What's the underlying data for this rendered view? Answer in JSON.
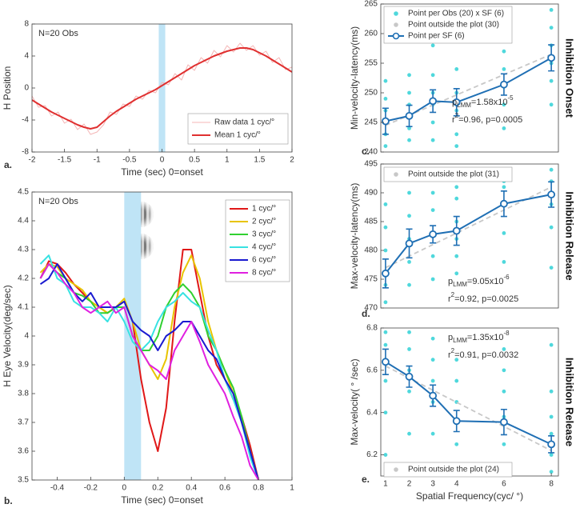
{
  "chart_data": [
    {
      "type": "line",
      "panel_label": "a.",
      "note": "N=20 Obs",
      "x_label": "Time (sec)   0=onset",
      "y_label": "H Position",
      "xlim": [
        -2,
        2
      ],
      "xticks": [
        -2,
        -1.5,
        -1,
        -0.5,
        0,
        0.5,
        1,
        1.5,
        2
      ],
      "ylim": [
        -8,
        8
      ],
      "yticks": [
        -8,
        -4,
        0,
        4,
        8
      ],
      "span": [
        -0.05,
        0.05
      ],
      "span_color": "#bfe4f6",
      "x": [
        -2,
        -1.9,
        -1.8,
        -1.7,
        -1.6,
        -1.5,
        -1.4,
        -1.3,
        -1.2,
        -1.1,
        -1,
        -0.9,
        -0.8,
        -0.7,
        -0.6,
        -0.5,
        -0.4,
        -0.3,
        -0.2,
        -0.1,
        0,
        0.1,
        0.2,
        0.3,
        0.4,
        0.5,
        0.6,
        0.7,
        0.8,
        0.9,
        1,
        1.1,
        1.2,
        1.3,
        1.4,
        1.5,
        1.6,
        1.7,
        1.8,
        1.9,
        2
      ],
      "series": [
        {
          "name": "Raw data 1 cyc/°",
          "color": "#f4b6b6",
          "width": 1,
          "values": [
            -1.0,
            -2.4,
            -2.2,
            -3.5,
            -3.0,
            -4.4,
            -3.9,
            -5.2,
            -4.5,
            -5.8,
            -5.5,
            -4.6,
            -3.0,
            -3.3,
            -2.0,
            -2.3,
            -1.0,
            -1.4,
            -0.3,
            -0.6,
            0.7,
            0.4,
            1.8,
            1.0,
            2.9,
            2.2,
            3.8,
            3.1,
            4.7,
            3.9,
            5.3,
            4.5,
            5.6,
            4.7,
            5.3,
            4.1,
            4.6,
            3.2,
            3.8,
            2.3,
            2.6
          ]
        },
        {
          "name": "Mean 1 cyc/°",
          "color": "#e03030",
          "width": 2,
          "values": [
            -1.5,
            -2.0,
            -2.5,
            -3.0,
            -3.4,
            -3.8,
            -4.2,
            -4.6,
            -4.9,
            -5.1,
            -4.9,
            -4.2,
            -3.5,
            -2.9,
            -2.4,
            -1.9,
            -1.4,
            -1.0,
            -0.6,
            -0.2,
            0.3,
            0.8,
            1.3,
            1.8,
            2.3,
            2.8,
            3.2,
            3.6,
            4.0,
            4.3,
            4.6,
            4.8,
            5.0,
            5.0,
            4.8,
            4.4,
            4.0,
            3.5,
            3.0,
            2.5,
            2.0
          ]
        }
      ]
    },
    {
      "type": "line",
      "panel_label": "b.",
      "note": "N=20 Obs",
      "x_label": "Time (sec)   0=onset",
      "y_label": "H Eye Velocity(deg/sec)",
      "xlim": [
        -0.55,
        1
      ],
      "xticks": [
        -0.4,
        -0.2,
        0,
        0.2,
        0.4,
        0.6,
        0.8,
        1
      ],
      "ylim": [
        3.5,
        4.5
      ],
      "yticks": [
        3.5,
        3.6,
        3.7,
        3.8,
        3.9,
        4,
        4.1,
        4.2,
        4.3,
        4.4,
        4.5
      ],
      "span": [
        0,
        0.1
      ],
      "span_color": "#bfe4f6",
      "x": [
        -0.5,
        -0.45,
        -0.4,
        -0.35,
        -0.3,
        -0.25,
        -0.2,
        -0.15,
        -0.1,
        -0.05,
        0,
        0.05,
        0.1,
        0.15,
        0.2,
        0.25,
        0.3,
        0.35,
        0.4,
        0.45,
        0.5,
        0.55,
        0.6,
        0.65,
        0.7,
        0.75,
        0.8
      ],
      "series": [
        {
          "name": "1 cyc/°",
          "color": "#e01818",
          "width": 2,
          "values": [
            4.2,
            4.26,
            4.25,
            4.22,
            4.18,
            4.15,
            4.12,
            4.1,
            4.08,
            4.1,
            4.12,
            4.05,
            3.85,
            3.7,
            3.6,
            3.75,
            4.05,
            4.3,
            4.3,
            4.15,
            4.0,
            3.9,
            3.85,
            3.78,
            3.72,
            3.62,
            3.5
          ]
        },
        {
          "name": "2 cyc/°",
          "color": "#e8c400",
          "width": 2,
          "values": [
            4.22,
            4.25,
            4.24,
            4.2,
            4.18,
            4.16,
            4.12,
            4.1,
            4.08,
            4.1,
            4.13,
            4.05,
            3.95,
            3.9,
            3.85,
            3.92,
            4.1,
            4.22,
            4.28,
            4.2,
            4.05,
            3.95,
            3.88,
            3.8,
            3.7,
            3.6,
            3.5
          ]
        },
        {
          "name": "3 cyc/°",
          "color": "#30d030",
          "width": 2,
          "values": [
            4.2,
            4.25,
            4.22,
            4.2,
            4.15,
            4.14,
            4.12,
            4.08,
            4.08,
            4.1,
            4.1,
            4.0,
            3.95,
            3.95,
            4.0,
            4.1,
            4.15,
            4.18,
            4.15,
            4.1,
            4.0,
            3.95,
            3.88,
            3.82,
            3.72,
            3.6,
            3.5
          ]
        },
        {
          "name": "4 cyc/°",
          "color": "#38e2e2",
          "width": 2,
          "values": [
            4.25,
            4.28,
            4.2,
            4.18,
            4.12,
            4.1,
            4.1,
            4.08,
            4.05,
            4.1,
            4.05,
            3.98,
            3.95,
            3.98,
            4.05,
            4.1,
            4.12,
            4.15,
            4.12,
            4.1,
            4.02,
            3.95,
            3.85,
            3.78,
            3.7,
            3.58,
            3.5
          ]
        },
        {
          "name": "6 cyc/°",
          "color": "#1a1ad0",
          "width": 2,
          "values": [
            4.18,
            4.2,
            4.25,
            4.2,
            4.15,
            4.12,
            4.15,
            4.1,
            4.1,
            4.1,
            4.12,
            4.05,
            4.02,
            4.0,
            3.95,
            4.0,
            4.02,
            4.05,
            4.05,
            4.0,
            3.95,
            3.92,
            3.85,
            3.8,
            3.7,
            3.6,
            3.5
          ]
        },
        {
          "name": "8 cyc/°",
          "color": "#e020e0",
          "width": 2,
          "values": [
            4.2,
            4.25,
            4.22,
            4.18,
            4.15,
            4.1,
            4.08,
            4.1,
            4.12,
            4.08,
            4.1,
            4.0,
            3.95,
            3.9,
            3.88,
            3.85,
            3.95,
            4.0,
            4.05,
            3.98,
            3.9,
            3.85,
            3.8,
            3.72,
            3.65,
            3.55,
            3.5
          ]
        }
      ]
    },
    {
      "type": "scatter",
      "panel_label": "c.",
      "side_title": "Inhibition Onset",
      "y_label": "Min-velocity-latency(ms)",
      "xlim": [
        0.8,
        8.3
      ],
      "ylim": [
        240,
        265
      ],
      "yticks": [
        240,
        245,
        250,
        255,
        260,
        265
      ],
      "series": [
        {
          "name": "Point per Obs (20) x SF (6)",
          "color": "#4fd8dc",
          "x": [
            1,
            1,
            1,
            1,
            1,
            1,
            2,
            2,
            2,
            2,
            2,
            2,
            3,
            3,
            3,
            3,
            3,
            3,
            4,
            4,
            4,
            4,
            4,
            4,
            6,
            6,
            6,
            6,
            6,
            6,
            8,
            8,
            8,
            8,
            8,
            8
          ],
          "values": [
            241,
            243,
            245,
            247,
            249,
            252,
            242,
            244,
            246,
            248,
            250,
            253,
            242,
            245,
            248,
            250,
            253,
            258,
            241,
            243,
            247,
            250,
            254,
            259,
            244,
            248,
            251,
            254,
            257,
            262,
            248,
            252,
            255,
            258,
            261,
            264
          ]
        },
        {
          "name": "Point per SF (6)",
          "color": "#1f6fb4",
          "x": [
            1,
            2,
            3,
            4,
            6,
            8
          ],
          "values": [
            245.2,
            246.1,
            248.6,
            248.4,
            251.4,
            255.9
          ],
          "errors": [
            2.2,
            1.8,
            1.9,
            2.3,
            1.8,
            2.2
          ]
        }
      ],
      "outside": {
        "name": "Point outside the plot (30)",
        "color": "#c8c8c8"
      },
      "fit": {
        "x": [
          1,
          8
        ],
        "values": [
          244.5,
          256.5
        ],
        "color": "#c8c8c8"
      },
      "stats": {
        "p": "p",
        "p_sub": "LMM",
        "p_main": "=1.58x10",
        "p_sup": "-5",
        "r": "r",
        "r_sup": "2",
        "r_main": "=0.96, p=0.0005"
      }
    },
    {
      "type": "scatter",
      "panel_label": "d.",
      "side_title": "Inhibition Release",
      "y_label": "Max-velocity-latency(ms)",
      "xlim": [
        0.8,
        8.3
      ],
      "ylim": [
        470,
        495
      ],
      "yticks": [
        470,
        475,
        480,
        485,
        490,
        495
      ],
      "series": [
        {
          "name": "Point per Obs (20) x SF (6)",
          "color": "#4fd8dc",
          "x": [
            1,
            1,
            1,
            1,
            1,
            1,
            2,
            2,
            2,
            2,
            2,
            2,
            3,
            3,
            3,
            3,
            3,
            3,
            4,
            4,
            4,
            4,
            4,
            4,
            6,
            6,
            6,
            6,
            6,
            6,
            8,
            8,
            8,
            8,
            8,
            8
          ],
          "values": [
            471,
            474,
            476,
            480,
            484,
            488,
            474,
            478,
            482,
            486,
            490,
            493,
            475,
            479,
            483,
            487,
            490,
            494,
            476,
            479,
            482,
            485,
            489,
            491,
            478,
            483,
            488,
            491,
            494,
            492,
            477,
            484,
            488,
            492,
            494,
            490
          ]
        },
        {
          "name": "Point per SF (6)",
          "color": "#1f6fb4",
          "x": [
            1,
            2,
            3,
            4,
            6,
            8
          ],
          "values": [
            476,
            481.2,
            482.8,
            483.4,
            488.1,
            489.7
          ],
          "errors": [
            2.5,
            2.5,
            1.5,
            2.5,
            2.2,
            2.2
          ]
        }
      ],
      "outside": {
        "name": "Point outside the plot (31)",
        "color": "#c8c8c8"
      },
      "fit": {
        "x": [
          1,
          8
        ],
        "values": [
          477,
          491
        ],
        "color": "#c8c8c8"
      },
      "stats": {
        "p": "p",
        "p_sub": "LMM",
        "p_main": "=9.05x10",
        "p_sup": "-6",
        "r": "r",
        "r_sup": "2",
        "r_main": "=0.92, p=0.0025"
      }
    },
    {
      "type": "scatter",
      "panel_label": "e.",
      "side_title": "Inhibition Release",
      "y_label": "Max-velocity( ° /sec)",
      "x_label": "Spatial Frequency(cyc/ °)",
      "xlim": [
        0.8,
        8.3
      ],
      "xticks": [
        1,
        2,
        3,
        4,
        6,
        8
      ],
      "ylim": [
        6.1,
        6.8
      ],
      "yticks": [
        6.2,
        6.4,
        6.6,
        6.8
      ],
      "series": [
        {
          "name": "Point per Obs (20) x SF (6)",
          "color": "#4fd8dc",
          "x": [
            1,
            1,
            1,
            1,
            1,
            1,
            2,
            2,
            2,
            2,
            2,
            2,
            3,
            3,
            3,
            3,
            3,
            3,
            4,
            4,
            4,
            4,
            4,
            4,
            6,
            6,
            6,
            6,
            6,
            6,
            8,
            8,
            8,
            8,
            8,
            8
          ],
          "values": [
            6.2,
            6.4,
            6.55,
            6.65,
            6.72,
            6.78,
            6.15,
            6.3,
            6.5,
            6.6,
            6.7,
            6.78,
            6.15,
            6.3,
            6.45,
            6.55,
            6.65,
            6.75,
            6.12,
            6.25,
            6.35,
            6.45,
            6.55,
            6.65,
            6.12,
            6.25,
            6.38,
            6.5,
            6.6,
            6.7,
            6.12,
            6.2,
            6.3,
            6.38,
            6.5,
            6.72
          ]
        },
        {
          "name": "Point per SF (6)",
          "color": "#1f6fb4",
          "x": [
            1,
            2,
            3,
            4,
            6,
            8
          ],
          "values": [
            6.64,
            6.57,
            6.48,
            6.36,
            6.355,
            6.25
          ],
          "errors": [
            0.06,
            0.05,
            0.05,
            0.05,
            0.06,
            0.04
          ]
        }
      ],
      "outside": {
        "name": "Point outside the plot (24)",
        "color": "#c8c8c8"
      },
      "fit": {
        "x": [
          1,
          8
        ],
        "values": [
          6.62,
          6.22
        ],
        "color": "#c8c8c8"
      },
      "stats": {
        "p": "p",
        "p_sub": "LMM",
        "p_main": "=1.35x10",
        "p_sup": "-8",
        "r": "r",
        "r_sup": "2",
        "r_main": "=0.91, p=0.0032"
      }
    }
  ]
}
